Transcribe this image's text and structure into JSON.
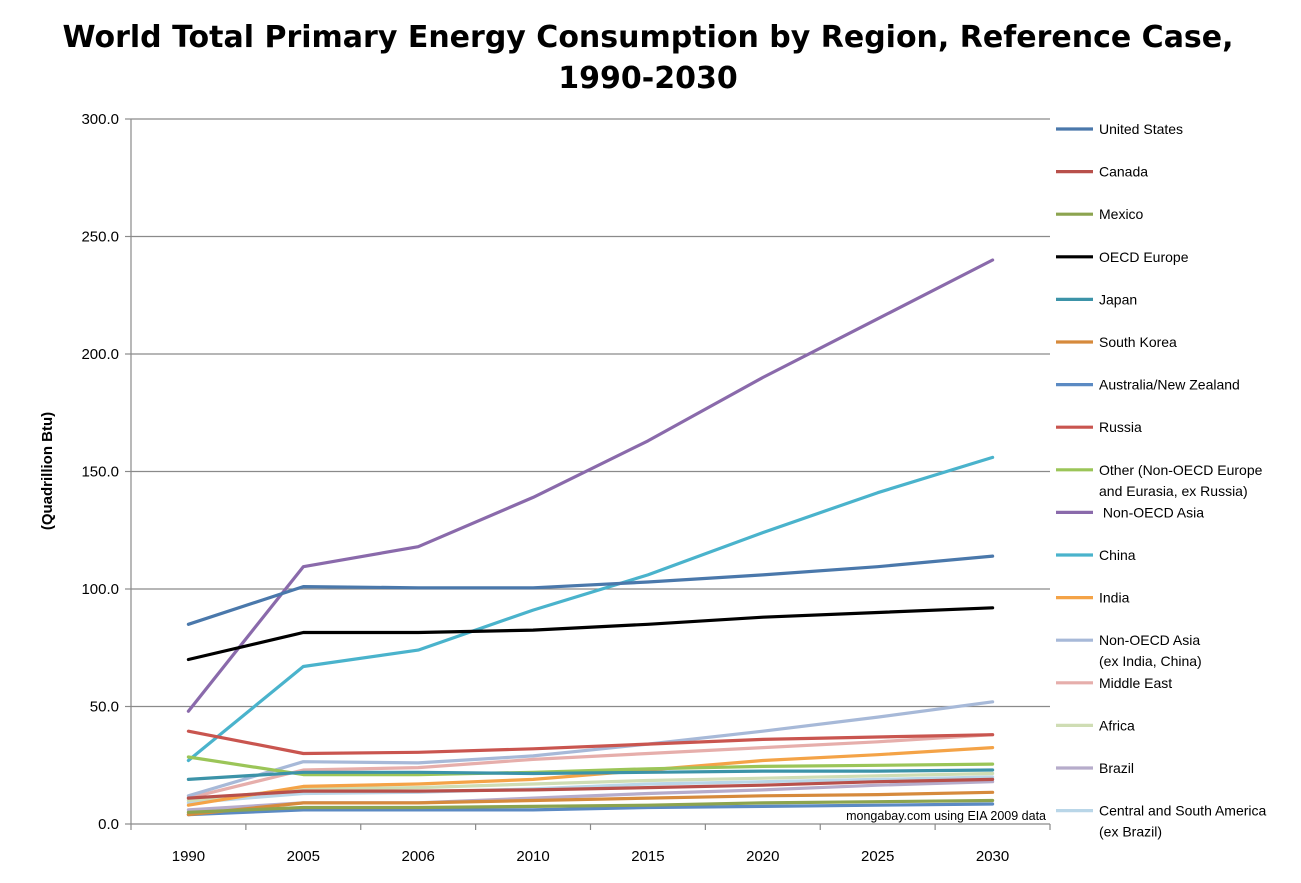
{
  "chart_data": {
    "type": "line",
    "title": "World Total Primary Energy Consumption by Region, Reference Case,",
    "title_line2": "1990-2030",
    "xlabel": "",
    "ylabel": "(Quadrillion Btu)",
    "ylim": [
      0,
      300
    ],
    "yticks": [
      "0.0",
      "50.0",
      "100.0",
      "150.0",
      "200.0",
      "250.0",
      "300.0"
    ],
    "ytick_values": [
      0,
      50,
      100,
      150,
      200,
      250,
      300
    ],
    "categories": [
      "1990",
      "2005",
      "2006",
      "2010",
      "2015",
      "2020",
      "2025",
      "2030"
    ],
    "grid": true,
    "legend": "right",
    "annotation": "mongabay.com using EIA 2009 data",
    "series": [
      {
        "name": "United States",
        "color": "#4a78ab",
        "values": [
          85,
          101,
          100.5,
          100.5,
          103,
          106,
          109.5,
          114
        ]
      },
      {
        "name": "Canada",
        "color": "#b8504b",
        "values": [
          11,
          14,
          14,
          14.5,
          15.5,
          16.5,
          18,
          19
        ]
      },
      {
        "name": "Mexico",
        "color": "#8ca44f",
        "values": [
          5,
          7,
          7,
          7.5,
          8,
          9,
          9.5,
          10
        ]
      },
      {
        "name": "OECD Europe",
        "color": "#000000",
        "values": [
          70,
          81.5,
          81.5,
          82.5,
          85,
          88,
          90,
          92
        ]
      },
      {
        "name": "Japan",
        "color": "#3c93a8",
        "values": [
          19,
          22,
          22,
          21.5,
          22,
          22.5,
          22.5,
          23
        ]
      },
      {
        "name": "South Korea",
        "color": "#d68a3c",
        "values": [
          4,
          9,
          9,
          10,
          11,
          12,
          12.5,
          13.5
        ]
      },
      {
        "name": "Australia/New Zealand",
        "color": "#5b8ac3",
        "values": [
          4,
          6,
          6,
          6,
          7,
          7.5,
          8,
          8.5
        ]
      },
      {
        "name": "Russia",
        "color": "#c9554f",
        "values": [
          39.5,
          30,
          30.5,
          32,
          34,
          36,
          37,
          38
        ]
      },
      {
        "name": "Other (Non-OECD Europe and Eurasia, ex Russia)",
        "legend_lines": [
          "Other (Non-OECD Europe",
          "and Eurasia, ex Russia)"
        ],
        "color": "#9bc558",
        "values": [
          28.5,
          21,
          21,
          22,
          23.5,
          24.5,
          25,
          25.5
        ]
      },
      {
        "name": "Non-OECD Asia",
        "legend_lines": [
          " Non-OECD Asia"
        ],
        "color": "#8a6aab",
        "values": [
          48,
          109.5,
          118,
          139,
          163,
          190,
          215,
          240
        ]
      },
      {
        "name": "China",
        "color": "#4ab3cc",
        "values": [
          27,
          67,
          74,
          91,
          106,
          124,
          141,
          156
        ]
      },
      {
        "name": "India",
        "color": "#f4a347",
        "values": [
          8,
          16,
          17,
          19,
          23,
          27,
          29.5,
          32.5
        ]
      },
      {
        "name": "Non-OECD Asia (ex India, China)",
        "legend_lines": [
          "Non-OECD Asia",
          "(ex India, China)"
        ],
        "color": "#a7b9d8",
        "values": [
          12,
          26.5,
          26,
          29,
          34,
          39.5,
          45.5,
          52
        ]
      },
      {
        "name": "Middle East",
        "color": "#e6aeab",
        "values": [
          11,
          23,
          24,
          27.5,
          30,
          32.5,
          35,
          38
        ]
      },
      {
        "name": "Africa",
        "color": "#cfddb4",
        "values": [
          10,
          15,
          15.5,
          17,
          18.5,
          19.5,
          20.5,
          21.5
        ]
      },
      {
        "name": "Brazil",
        "color": "#b6accb",
        "values": [
          6,
          9,
          9,
          11,
          13,
          14.5,
          16.5,
          18
        ]
      },
      {
        "name": "Central and South America (ex Brazil)",
        "legend_lines": [
          "Central and South America",
          "(ex Brazil)"
        ],
        "color": "#b9d6e8",
        "values": [
          9,
          13,
          13.5,
          15,
          17,
          18,
          19,
          20
        ]
      }
    ]
  }
}
